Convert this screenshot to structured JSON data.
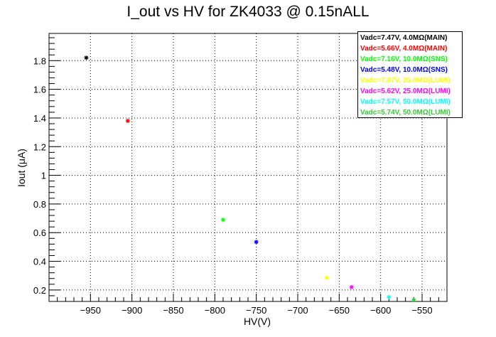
{
  "chart_data": {
    "type": "scatter",
    "title": "I_out vs HV for ZK4033 @ 0.15nALL",
    "xlabel": "HV(V)",
    "ylabel": "Iout (μA)",
    "xlim": [
      -1000,
      -520
    ],
    "ylim": [
      0.12,
      1.99
    ],
    "grid": true,
    "legend_position": "top-right",
    "x_ticks": [
      -950,
      -900,
      -850,
      -800,
      -750,
      -700,
      -650,
      -600,
      -550
    ],
    "x_tick_labels": [
      "−950",
      "−900",
      "−850",
      "−800",
      "−750",
      "−700",
      "−650",
      "−600",
      "−550"
    ],
    "y_ticks": [
      0.2,
      0.4,
      0.6,
      0.8,
      1.0,
      1.2,
      1.4,
      1.6,
      1.8
    ],
    "y_tick_labels": [
      "0.2",
      "0.4",
      "0.6",
      "0.8",
      "1",
      "1.2",
      "1.4",
      "1.6",
      "1.8"
    ],
    "series": [
      {
        "name": "Vadc=7.47V, 4.0MΩ(MAIN)",
        "color": "#000000",
        "x": [
          -955
        ],
        "y": [
          1.82
        ]
      },
      {
        "name": "Vadc=5.66V, 4.0MΩ(MAIN)",
        "color": "#ff0000",
        "x": [
          -905
        ],
        "y": [
          1.38
        ]
      },
      {
        "name": "Vadc=7.16V, 10.0MΩ(SNS)",
        "color": "#00ff00",
        "x": [
          -790
        ],
        "y": [
          0.69
        ]
      },
      {
        "name": "Vadc=5.48V, 10.0MΩ(SNS)",
        "color": "#0000ff",
        "x": [
          -750
        ],
        "y": [
          0.535
        ]
      },
      {
        "name": "Vadc=7.87V, 25.0MΩ(LUMI)",
        "color": "#ffff00",
        "x": [
          -665
        ],
        "y": [
          0.285
        ]
      },
      {
        "name": "Vadc=5.62V, 25.0MΩ(LUMI)",
        "color": "#ff00ff",
        "x": [
          -635
        ],
        "y": [
          0.22
        ]
      },
      {
        "name": "Vadc=7.57V, 50.0MΩ(LUMI)",
        "color": "#00ffff",
        "x": [
          -590
        ],
        "y": [
          0.15
        ]
      },
      {
        "name": "Vadc=5.74V, 50.0MΩ(LUMI)",
        "color": "#33cc33",
        "x": [
          -560
        ],
        "y": [
          0.13
        ]
      }
    ]
  }
}
